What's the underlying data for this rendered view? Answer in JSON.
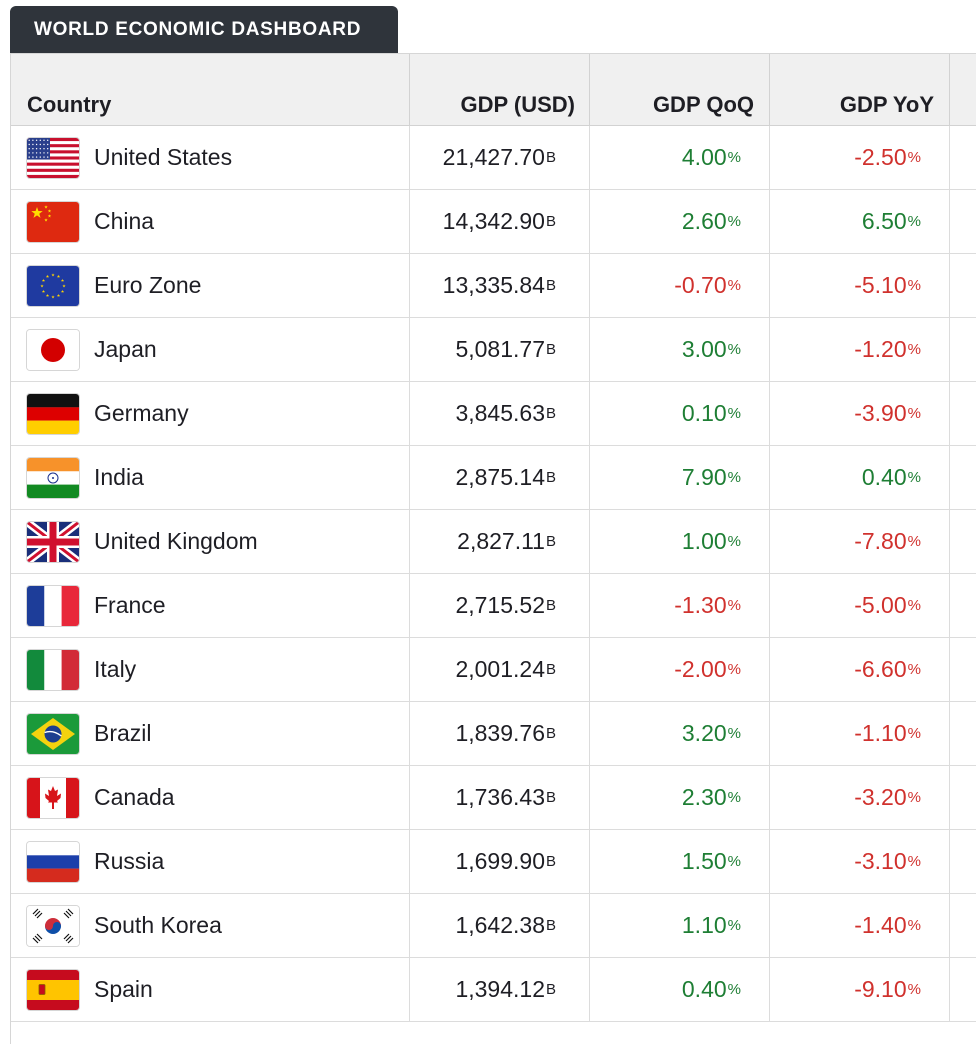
{
  "dashboard": {
    "title": "WORLD ECONOMIC DASHBOARD",
    "columns": [
      "Country",
      "GDP (USD)",
      "GDP QoQ",
      "GDP YoY"
    ],
    "gdp_unit": "B",
    "pct_unit": "%",
    "colors": {
      "positive": "#1e7e34",
      "negative": "#d0312d",
      "tab_bg": "#2f343b"
    },
    "rows": [
      {
        "country": "United States",
        "flag_icon": "us-flag-icon",
        "gdp": "21,427.70",
        "qoq": "4.00",
        "yoy": "-2.50"
      },
      {
        "country": "China",
        "flag_icon": "china-flag-icon",
        "gdp": "14,342.90",
        "qoq": "2.60",
        "yoy": "6.50"
      },
      {
        "country": "Euro Zone",
        "flag_icon": "eu-flag-icon",
        "gdp": "13,335.84",
        "qoq": "-0.70",
        "yoy": "-5.10"
      },
      {
        "country": "Japan",
        "flag_icon": "japan-flag-icon",
        "gdp": "5,081.77",
        "qoq": "3.00",
        "yoy": "-1.20"
      },
      {
        "country": "Germany",
        "flag_icon": "germany-flag-icon",
        "gdp": "3,845.63",
        "qoq": "0.10",
        "yoy": "-3.90"
      },
      {
        "country": "India",
        "flag_icon": "india-flag-icon",
        "gdp": "2,875.14",
        "qoq": "7.90",
        "yoy": "0.40"
      },
      {
        "country": "United Kingdom",
        "flag_icon": "uk-flag-icon",
        "gdp": "2,827.11",
        "qoq": "1.00",
        "yoy": "-7.80"
      },
      {
        "country": "France",
        "flag_icon": "france-flag-icon",
        "gdp": "2,715.52",
        "qoq": "-1.30",
        "yoy": "-5.00"
      },
      {
        "country": "Italy",
        "flag_icon": "italy-flag-icon",
        "gdp": "2,001.24",
        "qoq": "-2.00",
        "yoy": "-6.60"
      },
      {
        "country": "Brazil",
        "flag_icon": "brazil-flag-icon",
        "gdp": "1,839.76",
        "qoq": "3.20",
        "yoy": "-1.10"
      },
      {
        "country": "Canada",
        "flag_icon": "canada-flag-icon",
        "gdp": "1,736.43",
        "qoq": "2.30",
        "yoy": "-3.20"
      },
      {
        "country": "Russia",
        "flag_icon": "russia-flag-icon",
        "gdp": "1,699.90",
        "qoq": "1.50",
        "yoy": "-3.10"
      },
      {
        "country": "South Korea",
        "flag_icon": "south-korea-flag-icon",
        "gdp": "1,642.38",
        "qoq": "1.10",
        "yoy": "-1.40"
      },
      {
        "country": "Spain",
        "flag_icon": "spain-flag-icon",
        "gdp": "1,394.12",
        "qoq": "0.40",
        "yoy": "-9.10"
      }
    ]
  }
}
